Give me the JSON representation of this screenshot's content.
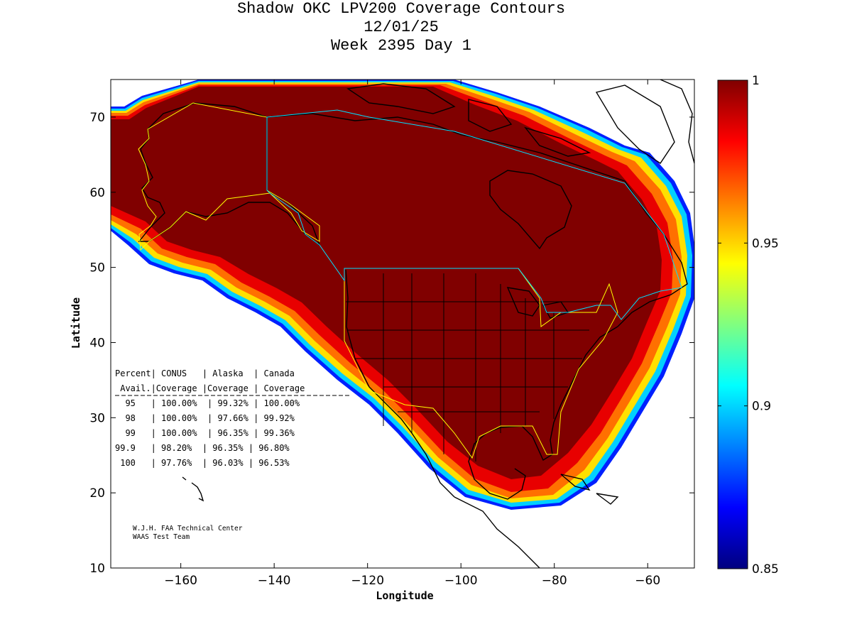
{
  "title": {
    "line1": "Shadow OKC LPV200 Coverage Contours",
    "line2": "12/01/25",
    "line3": "Week 2395 Day 1"
  },
  "chart_data": {
    "type": "heatmap",
    "xlabel": "Longitude",
    "ylabel": "Latitude",
    "xlim": [
      -175,
      -50
    ],
    "ylim": [
      10,
      75
    ],
    "x_ticks": [
      -160,
      -140,
      -120,
      -100,
      -80,
      -60
    ],
    "y_ticks": [
      10,
      20,
      30,
      40,
      50,
      60,
      70
    ],
    "colorbar": {
      "ticks": [
        0.85,
        0.9,
        0.95,
        1
      ],
      "tick_labels": [
        "0.85",
        "0.9",
        "0.95",
        "1"
      ],
      "range": [
        0.85,
        1
      ],
      "colormap": "jet"
    },
    "table": {
      "header1": "Percent| CONUS   | Alaska  | Canada",
      "header2": " Avail.|Coverage |Coverage | Coverage",
      "columns": [
        "Percent Avail.",
        "CONUS Coverage",
        "Alaska Coverage",
        "Canada Coverage"
      ],
      "rows": [
        [
          "95",
          "100.00%",
          "99.32%",
          "100.00%"
        ],
        [
          "98",
          "100.00%",
          "97.66%",
          "99.92%"
        ],
        [
          "99",
          "100.00%",
          "96.35%",
          "99.36%"
        ],
        [
          "99.9",
          "98.20%",
          "96.35%",
          "96.80%"
        ],
        [
          "100",
          "97.76%",
          "96.03%",
          "96.53%"
        ]
      ],
      "row_lines": [
        "  95   | 100.00%  | 99.32% | 100.00%",
        "  98   | 100.00%  | 97.66% | 99.92%",
        "  99   | 100.00%  | 96.35% | 99.36%",
        "99.9   | 98.20%  | 96.35% | 96.80%",
        " 100   | 97.76%  | 96.03% | 96.53%"
      ]
    }
  },
  "credit": {
    "line1": "W.J.H. FAA Technical Center",
    "line2": "WAAS Test Team"
  },
  "colors": {
    "dark_red": "#800000",
    "red": "#e00000",
    "orange": "#ff8000",
    "yellow": "#ffff00",
    "cyan": "#00ffff",
    "blue": "#0040ff",
    "navy": "#000080",
    "region_outline_yellow": "#ffff00",
    "region_outline_cyan": "#00e0ff"
  }
}
